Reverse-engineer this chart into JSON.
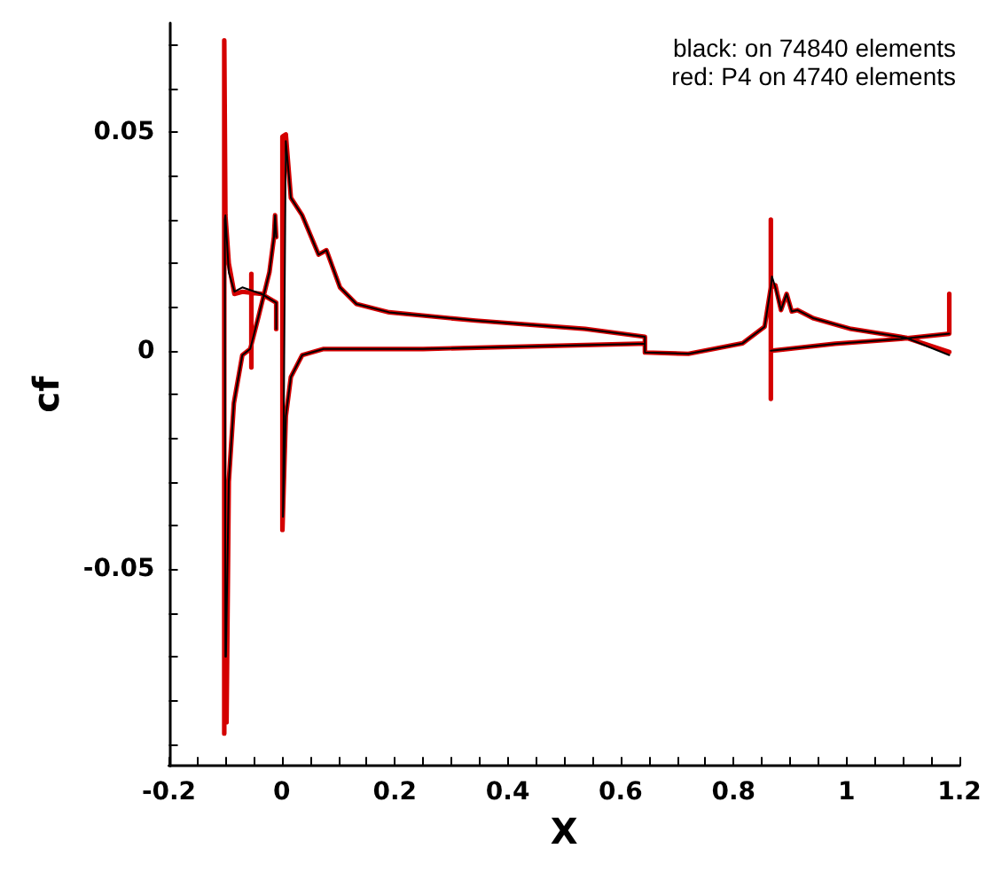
{
  "chart_data": {
    "type": "line",
    "xlabel": "X",
    "ylabel": "cf",
    "annotations": [
      "black: on 74840 elements",
      "red: P4 on 4740 elements"
    ],
    "xlim": [
      -0.2,
      1.2
    ],
    "ylim": [
      -0.095,
      0.075
    ],
    "xticks": [
      -0.2,
      {
        "value": -0.15,
        "label": null
      },
      {
        "value": -0.1,
        "label": null
      },
      {
        "value": -0.05,
        "label": null
      },
      0,
      {
        "value": 0.05,
        "label": null
      },
      {
        "value": 0.1,
        "label": null
      },
      {
        "value": 0.15,
        "label": null
      },
      0.2,
      {
        "value": 0.25,
        "label": null
      },
      {
        "value": 0.3,
        "label": null
      },
      {
        "value": 0.35,
        "label": null
      },
      0.4,
      {
        "value": 0.45,
        "label": null
      },
      {
        "value": 0.5,
        "label": null
      },
      {
        "value": 0.55,
        "label": null
      },
      0.6,
      {
        "value": 0.65,
        "label": null
      },
      {
        "value": 0.7,
        "label": null
      },
      {
        "value": 0.75,
        "label": null
      },
      0.8,
      {
        "value": 0.85,
        "label": null
      },
      {
        "value": 0.9,
        "label": null
      },
      {
        "value": 0.95,
        "label": null
      },
      1,
      {
        "value": 1.05,
        "label": null
      },
      {
        "value": 1.1,
        "label": null
      },
      {
        "value": 1.15,
        "label": null
      },
      1.2
    ],
    "yticks": [
      {
        "value": -0.09,
        "label": null
      },
      {
        "value": -0.08,
        "label": null
      },
      {
        "value": -0.07,
        "label": null
      },
      {
        "value": -0.06,
        "label": null
      },
      -0.05,
      {
        "value": -0.04,
        "label": null
      },
      {
        "value": -0.03,
        "label": null
      },
      {
        "value": -0.02,
        "label": null
      },
      {
        "value": -0.01,
        "label": null
      },
      0,
      {
        "value": 0.01,
        "label": null
      },
      {
        "value": 0.02,
        "label": null
      },
      {
        "value": 0.03,
        "label": null
      },
      {
        "value": 0.04,
        "label": null
      },
      0.05,
      {
        "value": 0.06,
        "label": null
      },
      {
        "value": 0.07,
        "label": null
      }
    ],
    "grid": false,
    "marker": "none",
    "line_style": "solid",
    "series": [
      {
        "color": "#000000",
        "x": [
          -0.1,
          -0.101,
          -0.1,
          -0.094,
          -0.084,
          -0.07,
          -0.036,
          -0.01,
          -0.01,
          null,
          -0.099,
          -0.094,
          -0.085,
          -0.07,
          -0.056,
          -0.041,
          -0.022,
          -0.014,
          -0.012,
          -0.01,
          null,
          0.002,
          0.007,
          0.016,
          0.036,
          0.065,
          0.079,
          0.103,
          0.132,
          0.19,
          0.343,
          0.537,
          0.643,
          0.643,
          0.72,
          0.816,
          0.855,
          0.866,
          null,
          0.002,
          0.007,
          0.016,
          0.036,
          0.074,
          0.25,
          0.632,
          0.643,
          null,
          0.866,
          0.868,
          0.874,
          0.884,
          0.894,
          0.903,
          0.913,
          0.942,
          1.008,
          1.105,
          1.182,
          null,
          0.866,
          0.98,
          1.096,
          1.182
        ],
        "values": [
          -0.07,
          0.03,
          0.031,
          0.018,
          0.0135,
          0.0145,
          0.013,
          0.011,
          0.005,
          null,
          -0.07,
          -0.03,
          -0.012,
          -0.001,
          0.0004,
          0.008,
          0.018,
          0.026,
          0.031,
          0.026,
          null,
          -0.038,
          0.048,
          0.035,
          0.031,
          0.022,
          0.023,
          0.0145,
          0.0107,
          0.0088,
          0.0069,
          0.005,
          0.0032,
          -0.0004,
          -0.0007,
          0.0017,
          0.0055,
          0.0145,
          null,
          -0.038,
          -0.015,
          -0.006,
          -0.001,
          0.0004,
          0.0004,
          0.0016,
          0.0016,
          null,
          0.0145,
          0.017,
          0.0145,
          0.0093,
          0.013,
          0.009,
          0.0093,
          0.0074,
          0.005,
          0.003,
          -0.001,
          null,
          0.0,
          0.0016,
          0.0027,
          0.0039
        ]
      },
      {
        "color": "#d40000",
        "x": [
          -0.102,
          -0.102,
          -0.1,
          -0.094,
          -0.084,
          -0.07,
          -0.036,
          -0.01,
          -0.01,
          null,
          -0.098,
          -0.094,
          -0.085,
          -0.07,
          -0.056,
          -0.041,
          -0.022,
          -0.014,
          -0.012,
          -0.01,
          null,
          -0.054,
          -0.054,
          null,
          0.001,
          0.001,
          0.007,
          0.016,
          0.036,
          0.065,
          0.079,
          0.103,
          0.132,
          0.19,
          0.343,
          0.537,
          0.643,
          0.643,
          0.72,
          0.816,
          0.855,
          0.866,
          null,
          0.001,
          0.007,
          0.016,
          0.036,
          0.074,
          0.25,
          0.632,
          0.643,
          null,
          0.866,
          0.866,
          null,
          0.866,
          0.874,
          0.884,
          0.894,
          0.903,
          0.913,
          0.942,
          1.008,
          1.105,
          1.182,
          null,
          0.866,
          0.98,
          1.096,
          1.182,
          1.182
        ],
        "values": [
          -0.0876,
          0.071,
          0.031,
          0.02,
          0.013,
          0.0135,
          0.013,
          0.011,
          0.005,
          null,
          -0.085,
          -0.03,
          -0.012,
          -0.001,
          0.0004,
          0.008,
          0.018,
          0.026,
          0.031,
          0.026,
          null,
          0.0176,
          -0.0038,
          null,
          -0.041,
          0.049,
          0.0495,
          0.035,
          0.031,
          0.022,
          0.023,
          0.0145,
          0.0107,
          0.0088,
          0.0069,
          0.005,
          0.0032,
          -0.0004,
          -0.0007,
          0.0017,
          0.0055,
          0.0145,
          null,
          -0.041,
          -0.015,
          -0.006,
          -0.001,
          0.0004,
          0.0004,
          0.0016,
          0.0016,
          null,
          0.03,
          -0.011,
          null,
          0.0145,
          0.015,
          0.0093,
          0.013,
          0.009,
          0.0093,
          0.0074,
          0.005,
          0.003,
          -0.0003,
          null,
          0.0,
          0.0016,
          0.0027,
          0.0039,
          0.013
        ]
      }
    ]
  }
}
